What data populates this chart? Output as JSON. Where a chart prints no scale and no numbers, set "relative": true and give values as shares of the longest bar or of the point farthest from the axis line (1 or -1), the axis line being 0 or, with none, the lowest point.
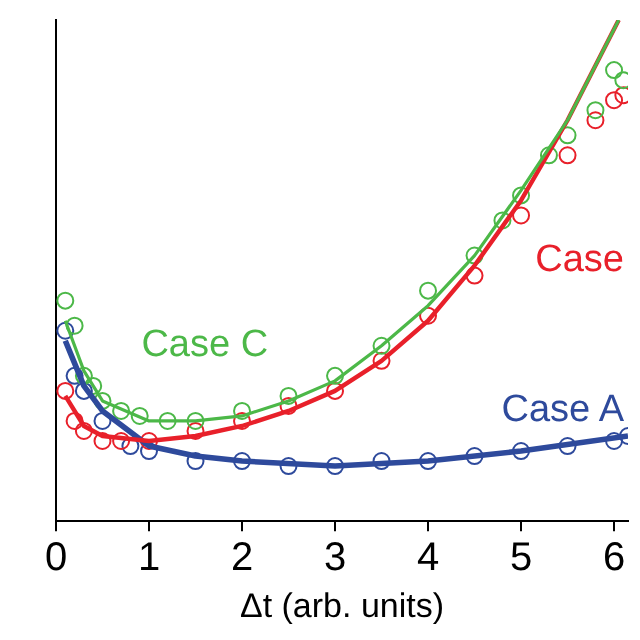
{
  "chart_data": {
    "type": "scatter",
    "relative": true,
    "xlabel": "Δt (arb. units)",
    "xlim": [
      0,
      6.15
    ],
    "xticks": [
      0,
      1,
      2,
      3,
      4,
      5,
      6
    ],
    "grid": false,
    "legend": false,
    "series": [
      {
        "type": "scatter",
        "marker": "circle",
        "name": "Case C",
        "color": "#4cb848",
        "x": [
          0.1,
          0.2,
          0.3,
          0.4,
          0.5,
          0.7,
          0.9,
          1.2,
          1.5,
          2.0,
          2.5,
          3.0,
          3.5,
          4.0,
          4.5,
          4.8,
          5.0,
          5.3,
          5.5,
          5.8,
          6.0,
          6.1
        ],
        "values": [
          0.44,
          0.39,
          0.29,
          0.27,
          0.24,
          0.22,
          0.21,
          0.2,
          0.2,
          0.22,
          0.25,
          0.29,
          0.35,
          0.46,
          0.53,
          0.6,
          0.65,
          0.73,
          0.77,
          0.82,
          0.9,
          0.88
        ]
      },
      {
        "type": "scatter",
        "marker": "circle",
        "name": "Case",
        "color": "#e8202a",
        "x": [
          0.1,
          0.2,
          0.3,
          0.5,
          0.7,
          1.0,
          1.5,
          2.0,
          2.5,
          3.0,
          3.5,
          4.0,
          4.5,
          5.0,
          5.5,
          5.8,
          6.0,
          6.1
        ],
        "values": [
          0.26,
          0.2,
          0.18,
          0.16,
          0.16,
          0.16,
          0.18,
          0.2,
          0.23,
          0.26,
          0.32,
          0.41,
          0.49,
          0.61,
          0.73,
          0.8,
          0.84,
          0.85
        ]
      },
      {
        "type": "scatter",
        "marker": "circle",
        "name": "Case A",
        "color": "#2e4a9c",
        "x": [
          0.1,
          0.2,
          0.3,
          0.5,
          0.8,
          1.0,
          1.5,
          2.0,
          2.5,
          3.0,
          3.5,
          4.0,
          4.5,
          5.0,
          5.5,
          6.0,
          6.15
        ],
        "values": [
          0.38,
          0.29,
          0.26,
          0.2,
          0.15,
          0.14,
          0.12,
          0.12,
          0.11,
          0.11,
          0.12,
          0.12,
          0.13,
          0.14,
          0.15,
          0.16,
          0.17
        ]
      },
      {
        "type": "line",
        "marker": "none",
        "color": "#4cb848",
        "x": [
          0.1,
          0.3,
          0.5,
          1.0,
          1.5,
          2.0,
          2.5,
          3.0,
          3.5,
          4.0,
          4.5,
          5.0,
          5.5,
          6.05
        ],
        "values": [
          0.4,
          0.3,
          0.24,
          0.2,
          0.2,
          0.21,
          0.24,
          0.28,
          0.35,
          0.43,
          0.53,
          0.66,
          0.8,
          1
        ]
      },
      {
        "type": "line",
        "marker": "none",
        "color": "#e8202a",
        "x": [
          0.1,
          0.3,
          0.5,
          1.0,
          1.5,
          2.0,
          2.5,
          3.0,
          3.5,
          4.0,
          4.5,
          5.0,
          5.5,
          6.05
        ],
        "values": [
          0.25,
          0.19,
          0.17,
          0.16,
          0.17,
          0.19,
          0.22,
          0.26,
          0.32,
          0.4,
          0.51,
          0.64,
          0.8,
          1
        ]
      },
      {
        "type": "line",
        "marker": "none",
        "color": "#2e4a9c",
        "x": [
          0.1,
          0.3,
          0.5,
          1.0,
          1.5,
          2.0,
          3.0,
          4.0,
          5.0,
          6.15
        ],
        "values": [
          0.36,
          0.27,
          0.22,
          0.15,
          0.13,
          0.12,
          0.11,
          0.12,
          0.14,
          0.17
        ]
      }
    ]
  }
}
